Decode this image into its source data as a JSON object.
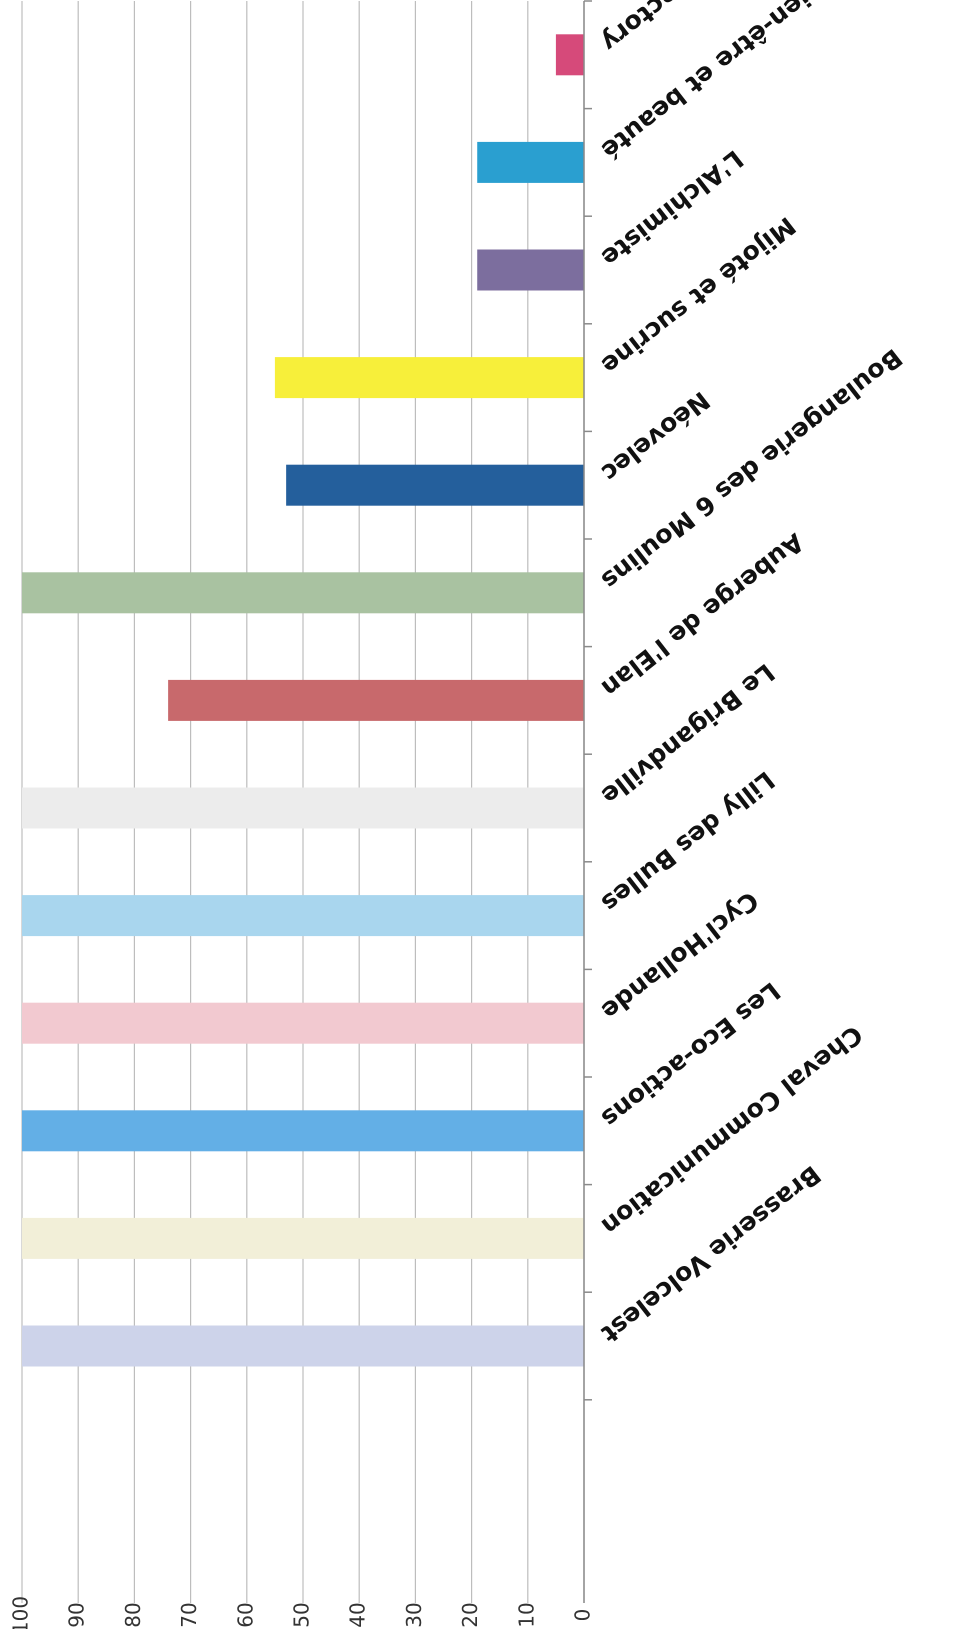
{
  "chart_data": {
    "type": "bar",
    "orientation": "horizontal",
    "image_rotation_degrees": 180,
    "title": "",
    "xlabel": "",
    "ylabel": "",
    "xlim": [
      0,
      100
    ],
    "ticks": [
      0,
      10,
      20,
      30,
      40,
      50,
      60,
      70,
      80,
      90,
      100
    ],
    "grid": true,
    "legend": "none",
    "categories": [
      "La Factory",
      "Mariluz Bien-être et beauté",
      "L'Alchimiste",
      "Mijoté et sucrine",
      "Néovelec",
      "Boulangerie des 6 Moulins",
      "Auberge de l'Elan",
      "Le Brigandville",
      "Lilly des Bulles",
      "Cycl'Hollande",
      "Les Eco-actions",
      "Cheval Communication",
      "Brasserie Volcelest"
    ],
    "values": [
      5,
      19,
      19,
      55,
      53,
      100,
      74,
      100,
      100,
      100,
      100,
      100,
      100
    ],
    "colors": [
      "#d64a7a",
      "#2a9fd0",
      "#7c6e9e",
      "#f7ef3a",
      "#245f9c",
      "#a9c2a1",
      "#c8696c",
      "#ececec",
      "#a9d6ee",
      "#f2c9d0",
      "#63afe6",
      "#f2efd8",
      "#cdd3ea"
    ]
  }
}
